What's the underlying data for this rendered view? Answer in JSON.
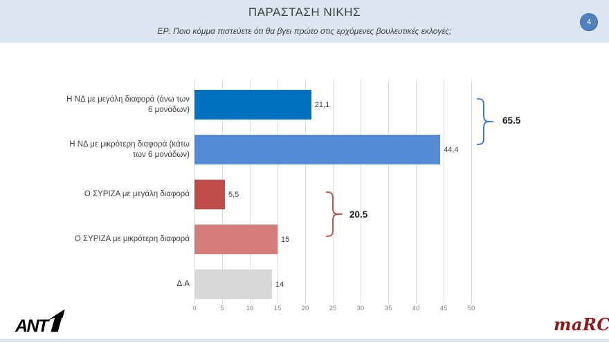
{
  "header": {
    "title": "ΠΑΡΑΣΤΑΣΗ ΝΙΚΗΣ",
    "subtitle": "ΕΡ: Ποιο κόμμα πιστεύετε ότι θα βγει πρώτο στις ερχόμενες βουλευτικές εκλογές;",
    "page_number": "4"
  },
  "chart_data": {
    "type": "bar",
    "orientation": "horizontal",
    "categories": [
      "Η ΝΔ με μεγάλη διαφορά (άνω των 6 μονάδων)",
      "Η ΝΔ με μικρότερη διαφορά (κάτω των 6 μονάδων)",
      "Ο ΣΥΡΙΖΑ με μεγάλη διαφορά",
      "Ο ΣΥΡΙΖΑ με μικρότερη διαφορά",
      "Δ.Α"
    ],
    "values": [
      21.1,
      44.4,
      5.5,
      15,
      14
    ],
    "value_labels": [
      "21,1",
      "44,4",
      "5,5",
      "15",
      "14"
    ],
    "bar_colors": [
      "#0070c0",
      "#548bd4",
      "#bf4b4b",
      "#d47c79",
      "#d8d8d8"
    ],
    "x_ticks": [
      0,
      5,
      10,
      15,
      20,
      25,
      30,
      35,
      40,
      45,
      50
    ],
    "xlim": [
      0,
      50
    ],
    "grid": "vertical",
    "gridline_color": "#d9d9d9",
    "groups": [
      {
        "label": "65.5",
        "from": 0,
        "to": 1,
        "color": "#4a7cc7"
      },
      {
        "label": "20.5",
        "from": 2,
        "to": 3,
        "color": "#c0504d"
      }
    ]
  },
  "footer": {
    "left_logo": "ANT1",
    "right_logo": "maRC"
  },
  "colors": {
    "header_background": "#dce6f2",
    "badge_blue": "#4f81bd",
    "marc_red": "#8c1a1c"
  }
}
